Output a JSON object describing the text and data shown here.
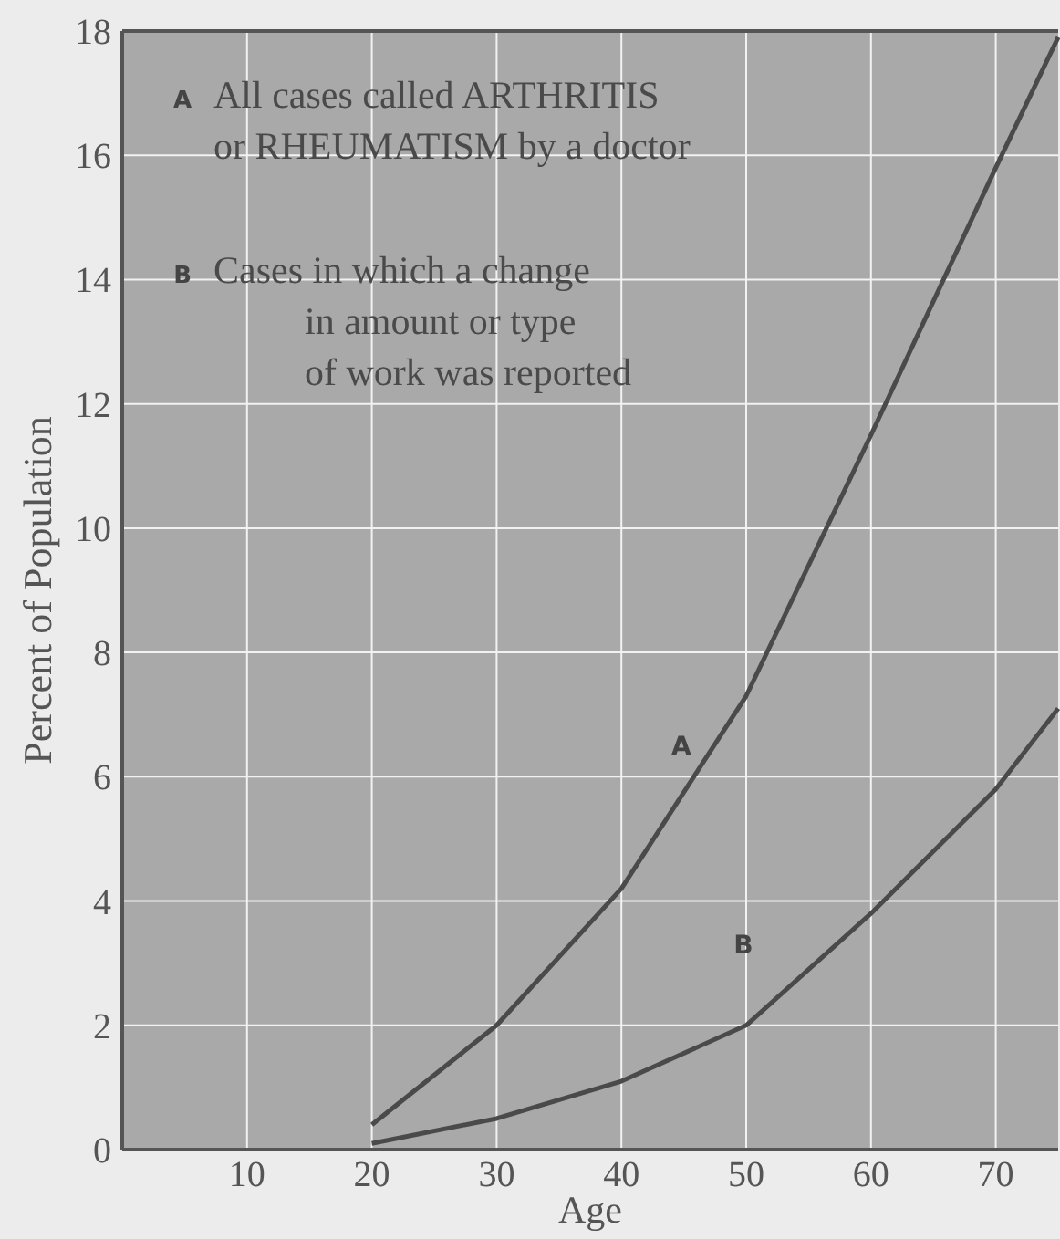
{
  "chart_data": {
    "type": "line",
    "xlabel": "Age",
    "ylabel": "Percent of Population",
    "xlim": [
      0,
      75
    ],
    "xticks": [
      10,
      20,
      30,
      40,
      50,
      60,
      70
    ],
    "ylim": [
      0,
      18
    ],
    "yticks": [
      0,
      2,
      4,
      6,
      8,
      10,
      12,
      14,
      16,
      18
    ],
    "grid": true,
    "marker": "none",
    "line_style": "solid",
    "x": [
      20,
      30,
      40,
      50,
      60,
      70,
      75
    ],
    "series": [
      {
        "name": "A",
        "color": "#4a4a4a",
        "values": [
          0.4,
          2.0,
          4.2,
          7.3,
          11.5,
          15.8,
          17.9
        ]
      },
      {
        "name": "B",
        "color": "#4a4a4a",
        "values": [
          0.1,
          0.5,
          1.1,
          2.0,
          3.8,
          5.8,
          7.1
        ]
      }
    ],
    "annotations": [
      "All cases called ARTHRITIS\nor RHEUMATISM by a doctor",
      "Cases in which a change\nin amount or type\nof work was reported"
    ]
  }
}
